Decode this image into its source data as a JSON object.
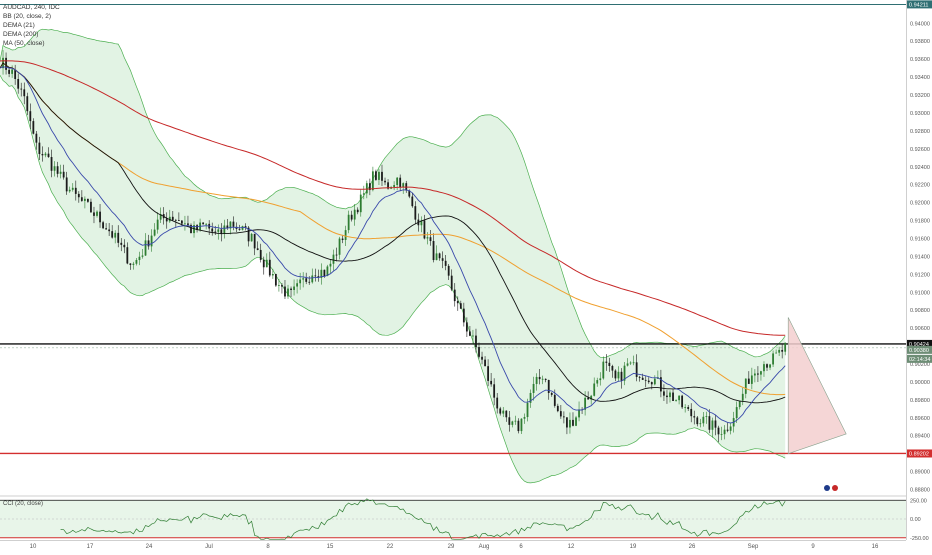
{
  "legend": {
    "symbol": "AUDCAD, 240, IDC",
    "bb": "BB (20, close, 2)",
    "dema1": "DEMA (21)",
    "dema2": "DEMA (200)",
    "ma": "MA (50, close)"
  },
  "oscillator": {
    "label": "CCI (20, close)"
  },
  "colors": {
    "candle_up": "#2e7d32",
    "candle_down": "#1b1b1b",
    "bb_band": "#4caf50",
    "bb_fill": "#d6eed8",
    "dema21": "#3949ab",
    "dema200": "#c62828",
    "ma50": "#f0a030",
    "basis": "#111111",
    "resistance": "#111111",
    "support": "#d32f2f",
    "osc_line": "#2e7d32",
    "osc_fill": "#e8f5e9",
    "last_price_badge": "#6d8d75",
    "triangle_fill": "#f3cfcf"
  },
  "chart_data": {
    "type": "candlestick",
    "title": "AUDCAD, 240, IDC",
    "y_ticks": [
      "0.94211",
      "0.94000",
      "0.93800",
      "0.93600",
      "0.93400",
      "0.93200",
      "0.93000",
      "0.92800",
      "0.92600",
      "0.92400",
      "0.92200",
      "0.92000",
      "0.91800",
      "0.91600",
      "0.91400",
      "0.91200",
      "0.91000",
      "0.90800",
      "0.90600",
      "0.90424",
      "0.90380",
      "0.90200",
      "0.90000",
      "0.89800",
      "0.89600",
      "0.89400",
      "0.89200",
      "0.89000",
      "0.88800"
    ],
    "ylim": [
      0.8875,
      0.9426
    ],
    "x_ticks": [
      "10",
      "17",
      "24",
      "Jul",
      "8",
      "15",
      "22",
      "29",
      "Aug",
      "6",
      "12",
      "19",
      "26",
      "Sep",
      "9",
      "16"
    ],
    "levels": {
      "top_price": 0.94211,
      "resistance": 0.90424,
      "support": 0.89202,
      "last_price": 0.9038
    },
    "badges": {
      "top": "0.94211",
      "resistance": "0.90424",
      "last": "0.90380",
      "countdown": "02:14:34",
      "support": "0.89202"
    },
    "price_path": [
      [
        0,
        0.9358
      ],
      [
        2,
        0.9345
      ],
      [
        4,
        0.9315
      ],
      [
        6,
        0.9262
      ],
      [
        8,
        0.9248
      ],
      [
        10,
        0.9228
      ],
      [
        12,
        0.921
      ],
      [
        14,
        0.9198
      ],
      [
        16,
        0.9185
      ],
      [
        18,
        0.917
      ],
      [
        20,
        0.915
      ],
      [
        22,
        0.913
      ],
      [
        24,
        0.915
      ],
      [
        26,
        0.9178
      ],
      [
        28,
        0.9186
      ],
      [
        30,
        0.918
      ],
      [
        32,
        0.9168
      ],
      [
        34,
        0.9175
      ],
      [
        36,
        0.9162
      ],
      [
        38,
        0.9178
      ],
      [
        40,
        0.917
      ],
      [
        42,
        0.9158
      ],
      [
        44,
        0.913
      ],
      [
        46,
        0.911
      ],
      [
        48,
        0.9095
      ],
      [
        50,
        0.911
      ],
      [
        52,
        0.9125
      ],
      [
        54,
        0.9122
      ],
      [
        56,
        0.915
      ],
      [
        58,
        0.9185
      ],
      [
        60,
        0.9205
      ],
      [
        62,
        0.9232
      ],
      [
        64,
        0.9218
      ],
      [
        66,
        0.9228
      ],
      [
        68,
        0.92
      ],
      [
        70,
        0.917
      ],
      [
        72,
        0.914
      ],
      [
        74,
        0.912
      ],
      [
        76,
        0.908
      ],
      [
        78,
        0.905
      ],
      [
        80,
        0.902
      ],
      [
        82,
        0.898
      ],
      [
        84,
        0.895
      ],
      [
        86,
        0.895
      ],
      [
        88,
        0.899
      ],
      [
        90,
        0.901
      ],
      [
        92,
        0.897
      ],
      [
        94,
        0.895
      ],
      [
        96,
        0.897
      ],
      [
        98,
        0.899
      ],
      [
        100,
        0.902
      ],
      [
        102,
        0.9
      ],
      [
        104,
        0.902
      ],
      [
        106,
        0.901
      ],
      [
        108,
        0.9005
      ],
      [
        110,
        0.899
      ],
      [
        112,
        0.898
      ],
      [
        114,
        0.8965
      ],
      [
        116,
        0.8958
      ],
      [
        118,
        0.895
      ],
      [
        120,
        0.8945
      ],
      [
        122,
        0.897
      ],
      [
        124,
        0.9005
      ],
      [
        126,
        0.902
      ],
      [
        128,
        0.9025
      ],
      [
        130,
        0.9038
      ]
    ],
    "oscillator": {
      "name": "CCI (20, close)",
      "ticks": [
        "250.00",
        "0.00",
        "-250.00"
      ],
      "ylim": [
        -280,
        280
      ]
    }
  }
}
